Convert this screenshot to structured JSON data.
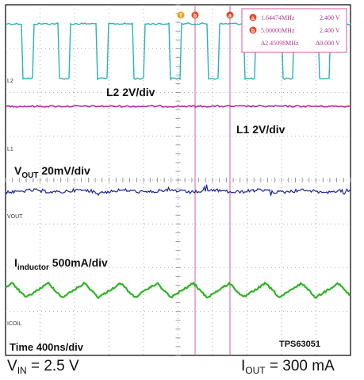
{
  "chart_data": {
    "type": "line",
    "title": "",
    "grid": true,
    "x_axis": {
      "divisions": 10,
      "scale_label": "Time 400ns/div"
    },
    "y_axis": {
      "divisions": 8
    },
    "channels": [
      {
        "name": "L2",
        "scale_label": "L2 2V/div",
        "color": "#29b3b3",
        "waveform": "square",
        "high_V": 2.4,
        "low_V": 0.0,
        "approx_period_ns": 430
      },
      {
        "name": "L1",
        "scale_label": "L1 2V/div",
        "color": "#b02aa2",
        "waveform": "dc_flat"
      },
      {
        "name": "VOUT",
        "scale_label_main": "V",
        "scale_label_sub": "OUT",
        "scale_label_rest": " 20mV/div",
        "color": "#1a2496",
        "waveform": "dc_with_ripple"
      },
      {
        "name": "ICOIL",
        "scale_label_main": "I",
        "scale_label_sub": "inductor",
        "scale_label_rest": " 500mA/div",
        "color": "#2fb324",
        "waveform": "triangle",
        "approx_period_ns": 420
      }
    ],
    "cursors": {
      "color": "#d65aa8",
      "marker_a": "a",
      "marker_b": "b",
      "marker_t": "T",
      "readout": {
        "a_freq": "1.64474MHz",
        "a_volt": "2.400 V",
        "b_freq": "5.00000MHz",
        "b_volt": "2.400 V",
        "delta_freq": "Δ2.45098MHz",
        "delta_volt": "Δ0.000 V"
      }
    },
    "part_label": "TPS63051"
  },
  "footer": {
    "vin_main": "V",
    "vin_sub": "IN",
    "vin_rest": " = 2.5 V",
    "iout_main": "I",
    "iout_sub": "OUT",
    "iout_rest": " = 300 mA"
  }
}
